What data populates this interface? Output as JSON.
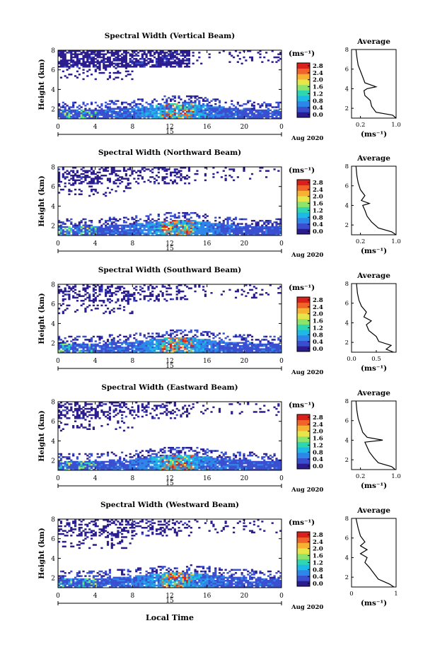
{
  "figure": {
    "x_axis_label": "Local Time",
    "date_label": "Aug 2020",
    "day_label": "15",
    "colorbar_unit": "(ms⁻¹)",
    "colorbar_ticks": [
      "2.8",
      "2.4",
      "2.0",
      "1.6",
      "1.2",
      "0.8",
      "0.4",
      "0.0"
    ],
    "average_title": "Average",
    "average_unit": "(ms⁻¹)",
    "colormap": [
      "#2b1d8f",
      "#3a4fd0",
      "#2d86e8",
      "#1fb9e6",
      "#2fd6b0",
      "#8ee36a",
      "#e6e64a",
      "#f7b233",
      "#f0642a",
      "#d9201b"
    ]
  },
  "chart_data": [
    {
      "type": "heatmap",
      "title": "Spectral Width (Vertical Beam)",
      "ylabel": "Height (km)",
      "xlim": [
        0,
        24
      ],
      "xticks": [
        "0",
        "4",
        "8",
        "12",
        "16",
        "20",
        "0"
      ],
      "ylim": [
        1,
        8
      ],
      "yticks": [
        "2",
        "4",
        "6",
        "8"
      ],
      "clim": [
        0.0,
        2.8
      ],
      "profile": {
        "type": "line",
        "xlim": [
          0,
          1.0
        ],
        "xticks": [
          "0.2",
          "1.0"
        ],
        "ylim": [
          1,
          8
        ],
        "yticks": [
          "2",
          "4",
          "6",
          "8"
        ],
        "x": [
          1.0,
          0.92,
          0.55,
          0.45,
          0.42,
          0.3,
          0.28,
          0.35,
          0.55,
          0.3,
          0.25,
          0.2,
          0.15,
          0.12,
          0.1
        ],
        "y": [
          1.0,
          1.3,
          1.6,
          2.2,
          2.8,
          3.3,
          3.8,
          4.0,
          4.2,
          4.6,
          5.2,
          5.8,
          6.4,
          7.2,
          8.0
        ]
      }
    },
    {
      "type": "heatmap",
      "title": "Spectral Width (Northward Beam)",
      "ylabel": "Height (km)",
      "xlim": [
        0,
        24
      ],
      "xticks": [
        "0",
        "4",
        "8",
        "12",
        "16",
        "20",
        "0"
      ],
      "ylim": [
        1,
        8
      ],
      "yticks": [
        "2",
        "4",
        "6",
        "8"
      ],
      "clim": [
        0.0,
        2.8
      ],
      "profile": {
        "type": "line",
        "xlim": [
          0,
          1.0
        ],
        "xticks": [
          "0.2",
          "1.0"
        ],
        "ylim": [
          1,
          8
        ],
        "yticks": [
          "2",
          "4",
          "6",
          "8"
        ],
        "x": [
          1.0,
          0.9,
          0.6,
          0.45,
          0.35,
          0.3,
          0.25,
          0.4,
          0.22,
          0.3,
          0.2,
          0.15,
          0.12,
          0.1
        ],
        "y": [
          1.0,
          1.3,
          1.7,
          2.3,
          2.9,
          3.5,
          4.0,
          4.2,
          4.5,
          5.0,
          5.6,
          6.3,
          7.0,
          8.0
        ]
      }
    },
    {
      "type": "heatmap",
      "title": "Spectral Width (Southward Beam)",
      "ylabel": "Height (km)",
      "xlim": [
        0,
        24
      ],
      "xticks": [
        "0",
        "4",
        "8",
        "12",
        "16",
        "20",
        "0"
      ],
      "ylim": [
        1,
        8
      ],
      "yticks": [
        "2",
        "4",
        "6",
        "8"
      ],
      "clim": [
        0.0,
        2.8
      ],
      "profile": {
        "type": "line",
        "xlim": [
          0,
          0.9
        ],
        "xticks": [
          "0.0",
          "0.5"
        ],
        "ylim": [
          1,
          8
        ],
        "yticks": [
          "2",
          "4",
          "6",
          "8"
        ],
        "x": [
          0.85,
          0.7,
          0.8,
          0.55,
          0.5,
          0.35,
          0.3,
          0.4,
          0.25,
          0.3,
          0.2,
          0.15,
          0.12,
          0.1
        ],
        "y": [
          1.0,
          1.3,
          1.7,
          2.1,
          2.6,
          3.2,
          3.8,
          4.2,
          4.6,
          5.1,
          5.7,
          6.3,
          7.0,
          8.0
        ]
      }
    },
    {
      "type": "heatmap",
      "title": "Spectral Width (Eastward Beam)",
      "ylabel": "Height (km)",
      "xlim": [
        0,
        24
      ],
      "xticks": [
        "0",
        "4",
        "8",
        "12",
        "16",
        "20",
        "0"
      ],
      "ylim": [
        1,
        8
      ],
      "yticks": [
        "2",
        "4",
        "6",
        "8"
      ],
      "clim": [
        0.0,
        2.8
      ],
      "profile": {
        "type": "line",
        "xlim": [
          0,
          1.0
        ],
        "xticks": [
          "0.2",
          "1.0"
        ],
        "ylim": [
          1,
          8
        ],
        "yticks": [
          "2",
          "4",
          "6",
          "8"
        ],
        "x": [
          0.98,
          0.9,
          0.6,
          0.5,
          0.4,
          0.35,
          0.3,
          0.7,
          0.35,
          0.25,
          0.2,
          0.15,
          0.12,
          0.1
        ],
        "y": [
          1.0,
          1.3,
          1.7,
          2.2,
          2.8,
          3.3,
          3.8,
          4.0,
          4.3,
          4.8,
          5.5,
          6.2,
          7.0,
          8.0
        ]
      }
    },
    {
      "type": "heatmap",
      "title": "Spectral Width (Westward Beam)",
      "ylabel": "Height (km)",
      "xlim": [
        0,
        24
      ],
      "xticks": [
        "0",
        "4",
        "8",
        "12",
        "16",
        "20",
        "0"
      ],
      "ylim": [
        1,
        8
      ],
      "yticks": [
        "2",
        "4",
        "6",
        "8"
      ],
      "clim": [
        0.0,
        2.8
      ],
      "profile": {
        "type": "line",
        "xlim": [
          0,
          1.0
        ],
        "xticks": [
          "0",
          "1"
        ],
        "ylim": [
          1,
          8
        ],
        "yticks": [
          "2",
          "4",
          "6",
          "8"
        ],
        "x": [
          0.95,
          0.85,
          0.6,
          0.5,
          0.4,
          0.3,
          0.35,
          0.2,
          0.35,
          0.2,
          0.3,
          0.2,
          0.15,
          0.1
        ],
        "y": [
          1.0,
          1.3,
          1.8,
          2.4,
          3.0,
          3.5,
          4.0,
          4.4,
          4.8,
          5.2,
          5.6,
          6.2,
          7.0,
          8.0
        ]
      }
    }
  ]
}
